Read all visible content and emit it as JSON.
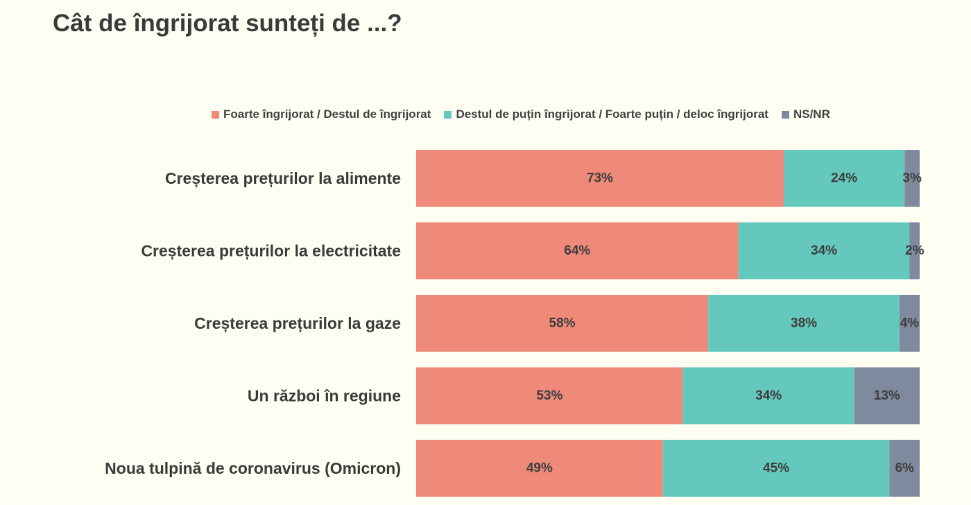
{
  "chart_data": {
    "type": "bar",
    "orientation": "horizontal",
    "stacked": true,
    "title": "Cât de îngrijorat sunteți de ...?",
    "categories": [
      "Creșterea prețurilor la alimente",
      "Creșterea prețurilor la electricitate",
      "Creșterea prețurilor la gaze",
      "Un război în regiune",
      "Noua tulpină de coronavirus (Omicron)"
    ],
    "series": [
      {
        "name": "Foarte îngrijorat / Destul de îngrijorat",
        "color": "#ef8a7a",
        "values": [
          73,
          64,
          58,
          53,
          49
        ]
      },
      {
        "name": "Destul de puțin îngrijorat / Foarte puțin / deloc îngrijorat",
        "color": "#64c9bc",
        "values": [
          24,
          34,
          38,
          34,
          45
        ]
      },
      {
        "name": "NS/NR",
        "color": "#808a9f",
        "values": [
          3,
          2,
          4,
          13,
          6
        ]
      }
    ],
    "data_labels": [
      [
        "73%",
        "24%",
        "3%"
      ],
      [
        "64%",
        "34%",
        "2%"
      ],
      [
        "58%",
        "38%",
        "4%"
      ],
      [
        "53%",
        "34%",
        "13%"
      ],
      [
        "49%",
        "45%",
        "6%"
      ]
    ],
    "xlim": [
      0,
      100
    ],
    "unit": "%",
    "legend_position": "top",
    "grid": false
  }
}
